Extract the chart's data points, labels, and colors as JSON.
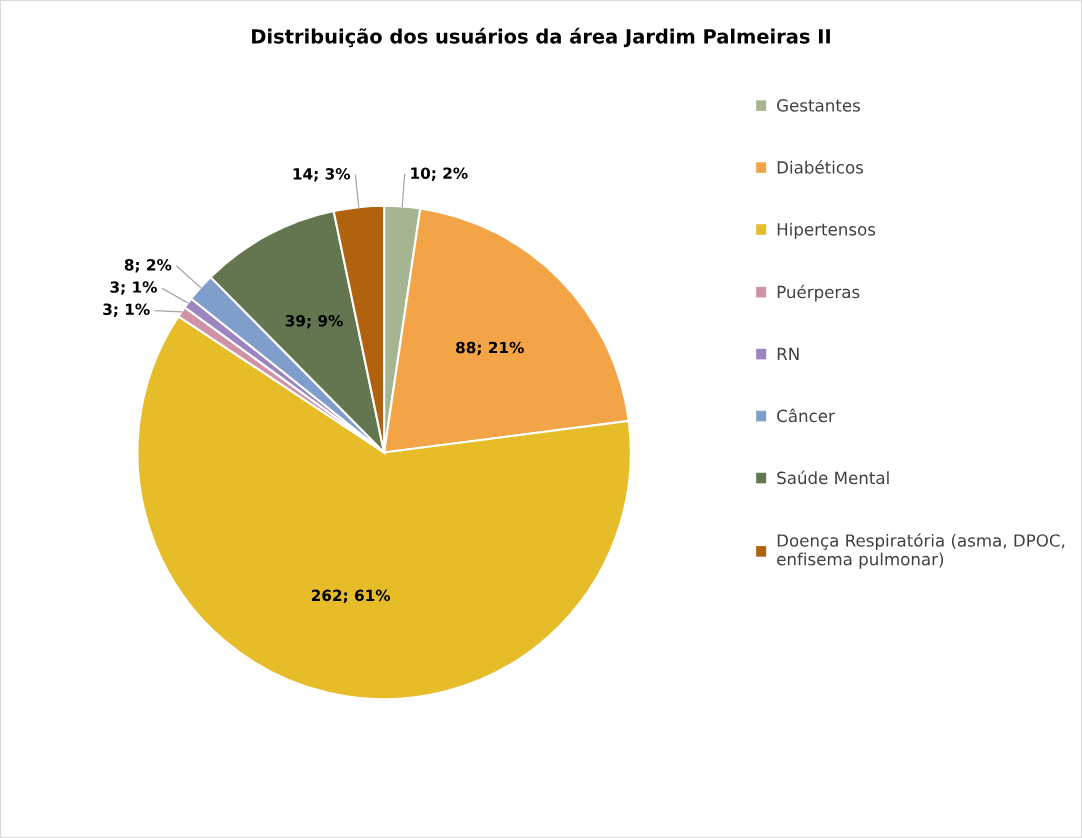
{
  "chart_data": {
    "type": "pie",
    "title": "Distribuição dos usuários da área Jardim Palmeiras II",
    "categories": [
      "Gestantes",
      "Diabéticos",
      "Hipertensos",
      "Puérperas",
      "RN",
      "Câncer",
      "Saúde Mental",
      "Doença Respiratória (asma, DPOC,\nenfisema pulmonar)"
    ],
    "values": [
      10,
      88,
      262,
      3,
      3,
      8,
      39,
      14
    ],
    "colors": [
      "#a5b592",
      "#f3a447",
      "#e6bc29",
      "#d092a7",
      "#9c85c0",
      "#809ecb",
      "#637650",
      "#b0620f"
    ],
    "value_labels": [
      "10; 2%",
      "88; 21%",
      "262; 61%",
      "3; 1%",
      "3; 1%",
      "8; 2%",
      "39; 9%",
      "14; 3%"
    ],
    "legend": "right"
  }
}
